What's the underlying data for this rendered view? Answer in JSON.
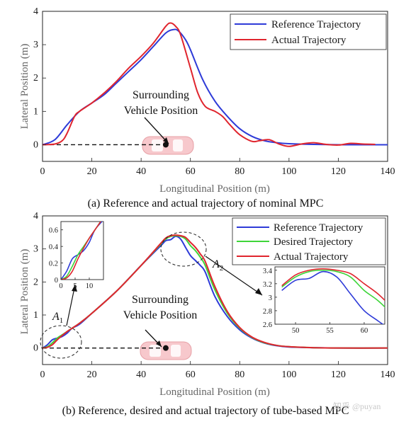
{
  "chart_data": [
    {
      "type": "line",
      "caption": "(a) Reference and actual trajectory of nominal MPC",
      "xlabel": "Longitudinal Position (m)",
      "ylabel": "Lateral Position (m)",
      "xlim": [
        0,
        140
      ],
      "ylim": [
        -0.5,
        4
      ],
      "xticks": [
        "0",
        "20",
        "40",
        "60",
        "80",
        "100",
        "120",
        "140"
      ],
      "yticks": [
        "0",
        "1",
        "2",
        "3",
        "4"
      ],
      "legend_position": "top-right",
      "annotation": {
        "text_line1": "Surrounding",
        "text_line2": "Vehicle Position",
        "x": 50,
        "y": 0
      },
      "series": [
        {
          "name": "Reference Trajectory",
          "color": "#2e3bd8",
          "x": [
            0,
            5,
            10,
            15,
            20,
            25,
            30,
            35,
            40,
            45,
            50,
            53,
            55,
            58,
            60,
            65,
            70,
            75,
            80,
            85,
            90,
            95,
            100,
            110,
            120,
            130,
            140
          ],
          "y": [
            0,
            0.15,
            0.6,
            1.0,
            1.25,
            1.5,
            1.85,
            2.2,
            2.55,
            2.95,
            3.35,
            3.45,
            3.42,
            3.15,
            2.85,
            1.95,
            1.3,
            0.85,
            0.48,
            0.25,
            0.12,
            0.06,
            0.03,
            0.01,
            0,
            0,
            0
          ]
        },
        {
          "name": "Actual Trajectory",
          "color": "#e0252e",
          "x": [
            0,
            5,
            8,
            10,
            13,
            15,
            20,
            25,
            30,
            35,
            40,
            45,
            50,
            52,
            54,
            56,
            60,
            63,
            66,
            70,
            73,
            76,
            80,
            85,
            88,
            92,
            96,
            100,
            105,
            110,
            115,
            120,
            125,
            130,
            135
          ],
          "y": [
            0,
            0.02,
            0.12,
            0.35,
            0.85,
            1.0,
            1.25,
            1.55,
            1.9,
            2.3,
            2.65,
            3.05,
            3.55,
            3.65,
            3.55,
            3.3,
            2.3,
            1.55,
            1.15,
            1.0,
            0.85,
            0.6,
            0.3,
            0.1,
            0.12,
            0.15,
            0.02,
            -0.05,
            0.02,
            0.06,
            0.01,
            -0.01,
            0.04,
            0.02,
            0.01
          ]
        }
      ]
    },
    {
      "type": "line",
      "caption": "(b) Reference, desired and actual trajectory of tube-based MPC",
      "xlabel": "Longitudinal Position (m)",
      "ylabel": "Lateral Position (m)",
      "xlim": [
        0,
        140
      ],
      "ylim": [
        -0.5,
        4
      ],
      "xticks": [
        "0",
        "20",
        "40",
        "60",
        "80",
        "100",
        "120",
        "140"
      ],
      "yticks": [
        "0",
        "1",
        "2",
        "3",
        "4"
      ],
      "legend_position": "top-right",
      "annotation": {
        "text_line1": "Surrounding",
        "text_line2": "Vehicle Position",
        "x": 50,
        "y": 0
      },
      "region_labels": [
        {
          "text": "A",
          "sub": "1"
        },
        {
          "text": "A",
          "sub": "2"
        }
      ],
      "series": [
        {
          "name": "Reference Trajectory",
          "color": "#2e3bd8",
          "x": [
            0,
            2,
            4,
            6,
            8,
            10,
            12,
            15,
            20,
            30,
            40,
            48,
            50,
            52,
            54,
            56,
            58,
            60,
            62,
            64,
            66,
            70,
            75,
            80,
            85,
            90,
            95,
            100,
            110,
            120,
            140
          ],
          "y": [
            0,
            0.1,
            0.25,
            0.3,
            0.35,
            0.45,
            0.6,
            0.72,
            1.05,
            1.72,
            2.5,
            3.1,
            3.25,
            3.28,
            3.38,
            3.3,
            3.05,
            2.8,
            2.65,
            2.5,
            2.3,
            1.55,
            0.95,
            0.55,
            0.3,
            0.15,
            0.07,
            0.03,
            0.01,
            0,
            0
          ]
        },
        {
          "name": "Desired Trajectory",
          "color": "#3ed53a",
          "x": [
            0,
            2,
            4,
            6,
            8,
            10,
            12,
            15,
            20,
            30,
            40,
            48,
            50,
            52,
            54,
            56,
            58,
            60,
            62,
            64,
            66,
            70,
            75,
            80,
            85,
            90,
            95,
            100,
            110,
            120,
            140
          ],
          "y": [
            0,
            0.04,
            0.16,
            0.3,
            0.4,
            0.5,
            0.6,
            0.75,
            1.05,
            1.72,
            2.5,
            3.15,
            3.3,
            3.38,
            3.4,
            3.38,
            3.3,
            3.1,
            2.95,
            2.75,
            2.5,
            1.75,
            1.05,
            0.6,
            0.32,
            0.16,
            0.08,
            0.04,
            0.01,
            0,
            0
          ]
        },
        {
          "name": "Actual Trajectory",
          "color": "#e0252e",
          "x": [
            0,
            2,
            4,
            6,
            8,
            10,
            12,
            15,
            20,
            30,
            40,
            48,
            50,
            52,
            54,
            56,
            58,
            60,
            62,
            64,
            66,
            70,
            75,
            80,
            85,
            90,
            95,
            100,
            110,
            120,
            140
          ],
          "y": [
            0,
            0.02,
            0.1,
            0.25,
            0.38,
            0.5,
            0.6,
            0.75,
            1.05,
            1.72,
            2.5,
            3.17,
            3.33,
            3.4,
            3.42,
            3.4,
            3.35,
            3.2,
            3.05,
            2.85,
            2.62,
            1.85,
            1.1,
            0.62,
            0.33,
            0.17,
            0.08,
            0.04,
            0.01,
            0,
            0
          ]
        }
      ],
      "insets": [
        {
          "xlim": [
            0,
            15
          ],
          "ylim": [
            0,
            0.7
          ],
          "xticks": [
            "0",
            "5",
            "10"
          ],
          "yticks": [
            "0",
            "0.2",
            "0.4",
            "0.6"
          ]
        },
        {
          "xlim": [
            47,
            63
          ],
          "ylim": [
            2.6,
            3.45
          ],
          "xticks": [
            "50",
            "55",
            "60"
          ],
          "yticks": [
            "2.6",
            "2.8",
            "3",
            "3.2",
            "3.4"
          ]
        }
      ]
    }
  ],
  "watermark": "知乎 @puyan"
}
